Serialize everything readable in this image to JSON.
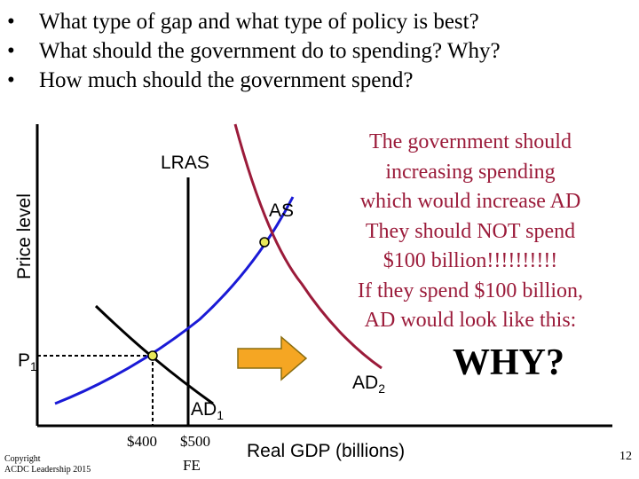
{
  "bullets": [
    {
      "marker": "•",
      "text": "What type of gap and what type of policy is best?"
    },
    {
      "marker": "•",
      "text": "What should the government do to spending? Why?"
    },
    {
      "marker": "•",
      "text": "How much should the government spend?"
    }
  ],
  "graph": {
    "y_axis_label": "Price level",
    "x_axis_label": "Real GDP (billions)",
    "p1_label": "P",
    "p1_sub": "1",
    "lras_label": "LRAS",
    "as_label": "AS",
    "ad1_label": "AD",
    "ad1_sub": "1",
    "ad2_label": "AD",
    "ad2_sub": "2",
    "tick_400": "$400",
    "tick_500_value": "$500",
    "tick_500_note": "FE",
    "colors": {
      "as_curve": "#1a1ad6",
      "ad2_curve": "#9b1b3a",
      "arrow_fill": "#f5a623",
      "arrow_stroke": "#8a6d10",
      "point_fill": "#e8e85a"
    }
  },
  "explanation": [
    "The government should",
    "increasing spending",
    "which would increase AD",
    "They should NOT spend",
    "$100 billion!!!!!!!!!!",
    "If they spend $100 billion,",
    "AD would look like this:"
  ],
  "why_label": "WHY?",
  "copyright": [
    "Copyright",
    "ACDC Leadership 2015"
  ],
  "page_number": "12"
}
